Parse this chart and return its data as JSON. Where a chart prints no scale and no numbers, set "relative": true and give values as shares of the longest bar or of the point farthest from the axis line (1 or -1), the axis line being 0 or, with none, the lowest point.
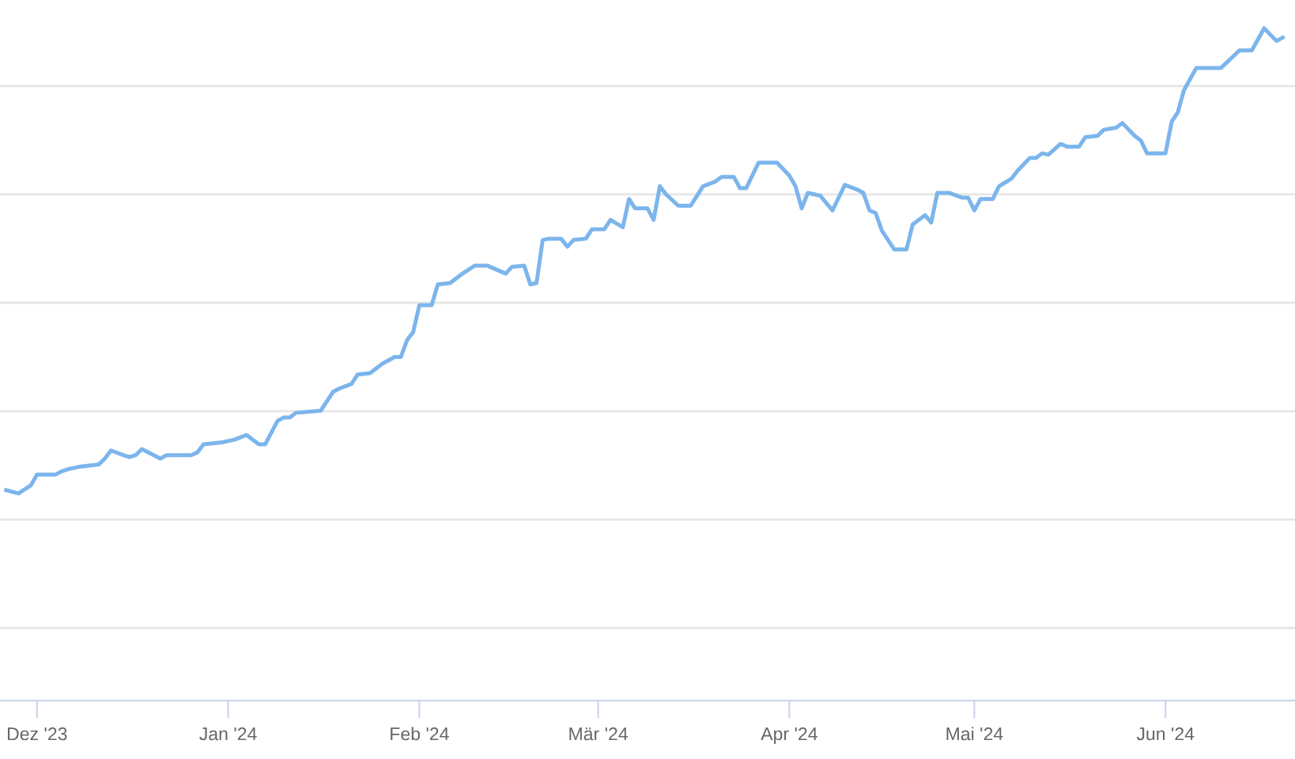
{
  "chart_data": {
    "type": "line",
    "relative": true,
    "grid": "y",
    "marker": "none",
    "line_style": "solid",
    "xlim": [
      "2023-11-25",
      "2024-06-22"
    ],
    "xticks": [
      {
        "value": "2023-12-01",
        "label": "Dez '23"
      },
      {
        "value": "2024-01-01",
        "label": "Jan '24"
      },
      {
        "value": "2024-02-01",
        "label": "Feb '24"
      },
      {
        "value": "2024-03-01",
        "label": "Mär '24"
      },
      {
        "value": "2024-04-01",
        "label": "Apr '24"
      },
      {
        "value": "2024-05-01",
        "label": "Mai '24"
      },
      {
        "value": "2024-06-01",
        "label": "Jun '24"
      }
    ],
    "series": [
      {
        "color": "#7cb5ec",
        "x": [
          "2023-11-26",
          "2023-11-28",
          "2023-11-30",
          "2023-12-01",
          "2023-12-04",
          "2023-12-05",
          "2023-12-06",
          "2023-12-08",
          "2023-12-11",
          "2023-12-12",
          "2023-12-13",
          "2023-12-15",
          "2023-12-16",
          "2023-12-17",
          "2023-12-18",
          "2023-12-21",
          "2023-12-22",
          "2023-12-26",
          "2023-12-27",
          "2023-12-28",
          "2023-12-31",
          "2024-01-02",
          "2024-01-04",
          "2024-01-05",
          "2024-01-06",
          "2024-01-07",
          "2024-01-09",
          "2024-01-10",
          "2024-01-11",
          "2024-01-12",
          "2024-01-16",
          "2024-01-18",
          "2024-01-19",
          "2024-01-21",
          "2024-01-22",
          "2024-01-24",
          "2024-01-26",
          "2024-01-28",
          "2024-01-29",
          "2024-01-30",
          "2024-01-31",
          "2024-02-01",
          "2024-02-03",
          "2024-02-04",
          "2024-02-06",
          "2024-02-08",
          "2024-02-10",
          "2024-02-12",
          "2024-02-15",
          "2024-02-16",
          "2024-02-18",
          "2024-02-19",
          "2024-02-20",
          "2024-02-21",
          "2024-02-22",
          "2024-02-24",
          "2024-02-25",
          "2024-02-26",
          "2024-02-28",
          "2024-02-29",
          "2024-03-02",
          "2024-03-03",
          "2024-03-05",
          "2024-03-06",
          "2024-03-07",
          "2024-03-09",
          "2024-03-10",
          "2024-03-11",
          "2024-03-12",
          "2024-03-14",
          "2024-03-16",
          "2024-03-18",
          "2024-03-20",
          "2024-03-21",
          "2024-03-23",
          "2024-03-24",
          "2024-03-25",
          "2024-03-27",
          "2024-03-30",
          "2024-04-01",
          "2024-04-02",
          "2024-04-03",
          "2024-04-04",
          "2024-04-06",
          "2024-04-08",
          "2024-04-10",
          "2024-04-12",
          "2024-04-13",
          "2024-04-14",
          "2024-04-15",
          "2024-04-16",
          "2024-04-18",
          "2024-04-20",
          "2024-04-21",
          "2024-04-23",
          "2024-04-24",
          "2024-04-25",
          "2024-04-27",
          "2024-04-29",
          "2024-04-30",
          "2024-05-01",
          "2024-05-02",
          "2024-05-04",
          "2024-05-05",
          "2024-05-07",
          "2024-05-08",
          "2024-05-10",
          "2024-05-11",
          "2024-05-12",
          "2024-05-13",
          "2024-05-15",
          "2024-05-16",
          "2024-05-18",
          "2024-05-19",
          "2024-05-21",
          "2024-05-22",
          "2024-05-24",
          "2024-05-25",
          "2024-05-27",
          "2024-05-28",
          "2024-05-29",
          "2024-06-01",
          "2024-06-02",
          "2024-06-03",
          "2024-06-04",
          "2024-06-06",
          "2024-06-09",
          "2024-06-10",
          "2024-06-13",
          "2024-06-15",
          "2024-06-17",
          "2024-06-19",
          "2024-06-20"
        ],
        "values": [
          0.313,
          0.308,
          0.32,
          0.336,
          0.336,
          0.341,
          0.344,
          0.348,
          0.351,
          0.36,
          0.372,
          0.365,
          0.362,
          0.365,
          0.374,
          0.36,
          0.365,
          0.365,
          0.369,
          0.381,
          0.384,
          0.388,
          0.395,
          0.388,
          0.381,
          0.381,
          0.416,
          0.421,
          0.421,
          0.428,
          0.431,
          0.459,
          0.464,
          0.471,
          0.485,
          0.487,
          0.501,
          0.511,
          0.511,
          0.536,
          0.548,
          0.588,
          0.588,
          0.619,
          0.621,
          0.635,
          0.647,
          0.647,
          0.635,
          0.645,
          0.647,
          0.619,
          0.621,
          0.685,
          0.687,
          0.687,
          0.675,
          0.685,
          0.687,
          0.701,
          0.701,
          0.715,
          0.704,
          0.746,
          0.732,
          0.732,
          0.715,
          0.765,
          0.753,
          0.736,
          0.736,
          0.765,
          0.772,
          0.779,
          0.779,
          0.762,
          0.762,
          0.8,
          0.8,
          0.781,
          0.765,
          0.732,
          0.755,
          0.751,
          0.729,
          0.767,
          0.76,
          0.755,
          0.729,
          0.725,
          0.699,
          0.671,
          0.671,
          0.708,
          0.722,
          0.711,
          0.755,
          0.755,
          0.748,
          0.748,
          0.729,
          0.746,
          0.746,
          0.765,
          0.776,
          0.788,
          0.807,
          0.807,
          0.814,
          0.812,
          0.828,
          0.824,
          0.824,
          0.838,
          0.84,
          0.849,
          0.852,
          0.859,
          0.84,
          0.833,
          0.814,
          0.814,
          0.861,
          0.875,
          0.908,
          0.941,
          0.941,
          0.941,
          0.967,
          0.967,
          1.0,
          0.981,
          0.986
        ]
      }
    ]
  }
}
